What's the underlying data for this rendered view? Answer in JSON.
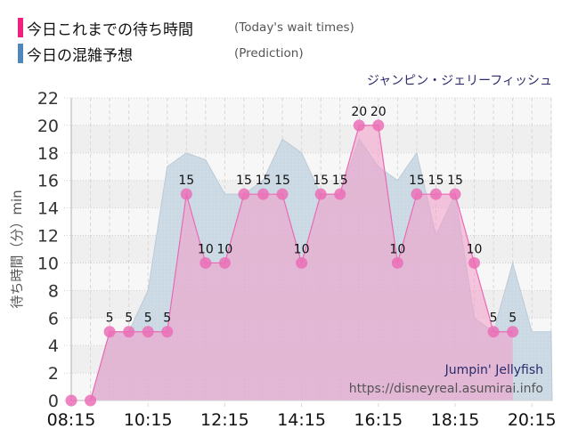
{
  "legend": [
    {
      "jp": "今日これまでの待ち時間",
      "en": "(Today's wait times)",
      "color": "#f0207f"
    },
    {
      "jp": "今日の混雑予想",
      "en": "(Prediction)",
      "color": "#4f87b8"
    }
  ],
  "attraction_name_jp": "ジャンピン・ジェリーフィッシュ",
  "watermark": {
    "attraction_en": "Jumpin' Jellyfish",
    "url": "https://disneyreal.asumirai.info"
  },
  "colors": {
    "actual_line": "#e86ab4",
    "actual_fill": "#d9a3d1",
    "actual_marker": "#eb6fb6",
    "prediction_fill": "#c9d8e3",
    "plot_bg_a": "#f7f7f7",
    "plot_bg_b": "#efefef"
  },
  "chart_data": {
    "type": "area",
    "title": "ジャンピン・ジェリーフィッシュ",
    "xlabel": "",
    "ylabel": "待ち時間（分）min",
    "ylim": [
      0,
      22
    ],
    "yticks": [
      0,
      2,
      4,
      6,
      8,
      10,
      12,
      14,
      16,
      18,
      20,
      22
    ],
    "xticks": [
      "08:15",
      "10:15",
      "12:15",
      "14:15",
      "16:15",
      "18:15",
      "20:15"
    ],
    "grid": true,
    "legend_position": "top-left",
    "series": [
      {
        "name": "今日これまでの待ち時間 (Today's wait times)",
        "x": [
          "08:15",
          "08:45",
          "09:15",
          "09:45",
          "10:15",
          "10:45",
          "11:15",
          "11:45",
          "12:15",
          "12:45",
          "13:15",
          "13:45",
          "14:15",
          "14:45",
          "15:15",
          "15:45",
          "16:15",
          "16:45",
          "17:15",
          "17:45",
          "18:15",
          "18:45",
          "19:15",
          "19:45"
        ],
        "values": [
          0,
          0,
          5,
          5,
          5,
          5,
          15,
          10,
          10,
          15,
          15,
          15,
          10,
          15,
          15,
          20,
          20,
          10,
          15,
          15,
          15,
          10,
          5,
          5
        ],
        "labels_shown": [
          "",
          "",
          "5",
          "5",
          "5",
          "5",
          "15",
          "10",
          "10",
          "15",
          "15",
          "15",
          "10",
          "15",
          "15",
          "20",
          "20",
          "10",
          "15",
          "15",
          "15",
          "10",
          "5",
          "5"
        ]
      },
      {
        "name": "今日の混雑予想 (Prediction)",
        "x": [
          "08:15",
          "08:45",
          "09:15",
          "09:45",
          "10:15",
          "10:45",
          "11:15",
          "11:45",
          "12:15",
          "12:45",
          "13:15",
          "13:45",
          "14:15",
          "14:45",
          "15:15",
          "15:45",
          "16:15",
          "16:45",
          "17:15",
          "17:45",
          "18:15",
          "18:45",
          "19:15",
          "19:45",
          "20:15",
          "20:45"
        ],
        "values": [
          0,
          0,
          5,
          5,
          8,
          17,
          18,
          17.5,
          15,
          15,
          16,
          19,
          18,
          15,
          15,
          19,
          17,
          16,
          18,
          12,
          15,
          6,
          5,
          10,
          5,
          5
        ]
      }
    ]
  }
}
